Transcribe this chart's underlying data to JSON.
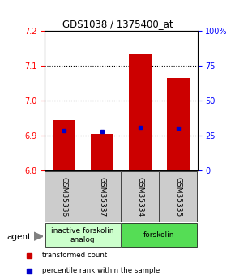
{
  "title": "GDS1038 / 1375400_at",
  "samples": [
    "GSM35336",
    "GSM35337",
    "GSM35334",
    "GSM35335"
  ],
  "bar_tops": [
    6.945,
    6.905,
    7.135,
    7.065
  ],
  "bar_bottom": 6.8,
  "blue_values": [
    6.914,
    6.912,
    6.925,
    6.922
  ],
  "ylim": [
    6.8,
    7.2
  ],
  "yticks_left": [
    6.8,
    6.9,
    7.0,
    7.1,
    7.2
  ],
  "yticks_right_vals": [
    6.8,
    6.9,
    7.0,
    7.1,
    7.2
  ],
  "yticks_right_labels": [
    "0",
    "25",
    "50",
    "75",
    "100%"
  ],
  "bar_color": "#cc0000",
  "blue_color": "#0000cc",
  "agent_labels": [
    "inactive forskolin\nanalog",
    "forskolin"
  ],
  "agent_group_sizes": [
    2,
    2
  ],
  "agent_colors": [
    "#ccffcc",
    "#55dd55"
  ],
  "grid_yticks": [
    6.9,
    7.0,
    7.1
  ],
  "bar_width": 0.6,
  "sample_box_color": "#cccccc",
  "legend_red": "transformed count",
  "legend_blue": "percentile rank within the sample"
}
